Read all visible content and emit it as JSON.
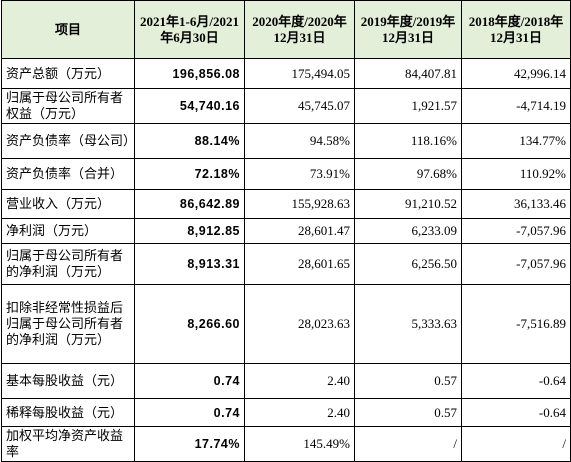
{
  "table": {
    "header": [
      "项目",
      "2021年1-6月/2021年6月30日",
      "2020年度/2020年12月31日",
      "2019年度/2019年12月31日",
      "2018年度/2018年12月31日"
    ],
    "rows": [
      [
        "资产总额（万元）",
        "196,856.08",
        "175,494.05",
        "84,407.81",
        "42,996.14"
      ],
      [
        "归属于母公司所有者权益（万元）",
        "54,740.16",
        "45,745.07",
        "1,921.57",
        "-4,714.19"
      ],
      [
        "资产负债率（母公司）",
        "88.14%",
        "94.58%",
        "118.16%",
        "134.77%"
      ],
      [
        "资产负债率（合并）",
        "72.18%",
        "73.91%",
        "97.68%",
        "110.92%"
      ],
      [
        "营业收入（万元）",
        "86,642.89",
        "155,928.63",
        "91,210.52",
        "36,133.46"
      ],
      [
        "净利润（万元）",
        "8,912.85",
        "28,601.47",
        "6,233.09",
        "-7,057.96"
      ],
      [
        "归属于母公司所有者的净利润（万元）",
        "8,913.31",
        "28,601.65",
        "6,256.50",
        "-7,057.96"
      ],
      [
        "扣除非经常性损益后归属于母公司所有者的净利润（万元）",
        "8,266.60",
        "28,023.63",
        "5,333.63",
        "-7,516.89"
      ],
      [
        "基本每股收益（元）",
        "0.74",
        "2.40",
        "0.57",
        "-0.64"
      ],
      [
        "稀释每股收益（元）",
        "0.74",
        "2.40",
        "0.57",
        "-0.64"
      ],
      [
        "加权平均净资产收益率",
        "17.74%",
        "145.49%",
        "/",
        "/"
      ]
    ]
  }
}
